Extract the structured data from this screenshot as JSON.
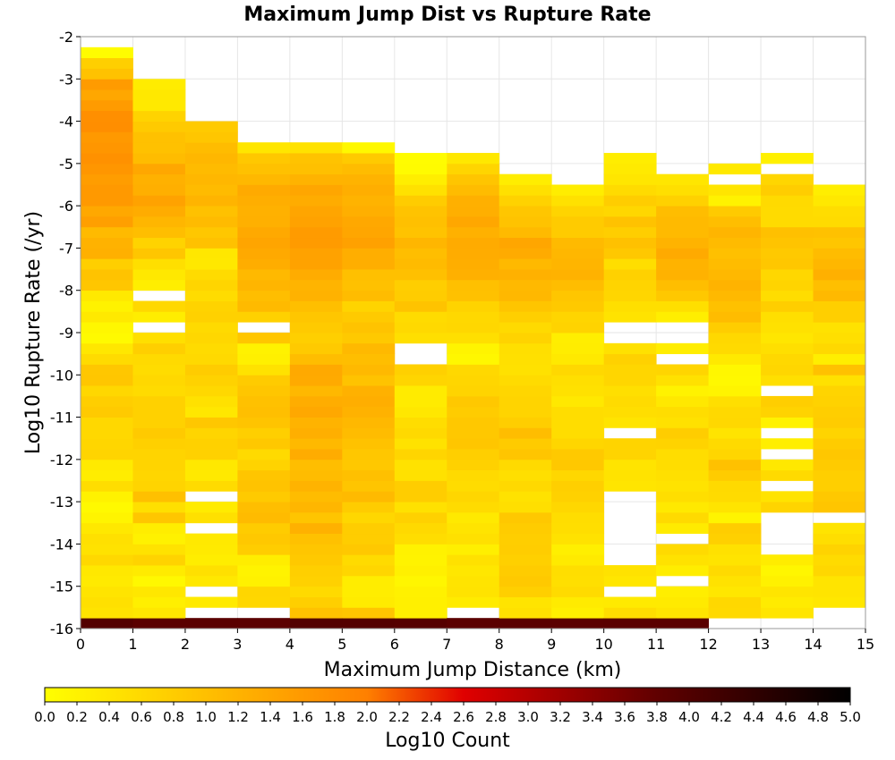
{
  "chart_data": {
    "type": "heatmap",
    "title": "Maximum Jump Dist vs Rupture Rate",
    "xlabel": "Maximum Jump Distance (km)",
    "ylabel": "Log10 Rupture Rate (/yr)",
    "colorbar_label": "Log10 Count",
    "xlim": [
      0,
      15
    ],
    "ylim": [
      -16,
      -2
    ],
    "x_ticks": [
      0,
      1,
      2,
      3,
      4,
      5,
      6,
      7,
      8,
      9,
      10,
      11,
      12,
      13,
      14,
      15
    ],
    "y_ticks": [
      -2,
      -3,
      -4,
      -5,
      -6,
      -7,
      -8,
      -9,
      -10,
      -11,
      -12,
      -13,
      -14,
      -15,
      -16
    ],
    "colorbar_ticks": [
      "0.0",
      "0.2",
      "0.4",
      "0.6",
      "0.8",
      "1.0",
      "1.2",
      "1.4",
      "1.6",
      "1.8",
      "2.0",
      "2.2",
      "2.4",
      "2.6",
      "2.8",
      "3.0",
      "3.2",
      "3.4",
      "3.6",
      "3.8",
      "4.0",
      "4.2",
      "4.4",
      "4.6",
      "4.8",
      "5.0"
    ],
    "color_range": [
      0,
      5
    ],
    "colors": {
      "low": "#ffff00",
      "mid": "#ff8000",
      "high_mid": "#e00000",
      "dark": "#600000",
      "max": "#000000"
    },
    "bin_size": {
      "x": 1,
      "y": 0.25
    },
    "bins": [
      {
        "x": 0,
        "y_range": [
          -16,
          -2.75
        ],
        "values": [
          3.96,
          0.44,
          0.49,
          0.42,
          0.33,
          0.36,
          0.61,
          0.45,
          0.49,
          0.36,
          0.17,
          0.1,
          0.2,
          0.53,
          0.29,
          0.33,
          0.68,
          0.64,
          0.61,
          0.61,
          0.83,
          0.77,
          0.63,
          0.89,
          0.88,
          0.56,
          0.38,
          0.08,
          0.12,
          0.34,
          0.21,
          0.34,
          0.89,
          0.95,
          0.76,
          1.25,
          1.21,
          1.09,
          1.51,
          1.37,
          1.61,
          1.61,
          1.55,
          1.66,
          1.73,
          1.66,
          1.61,
          1.78,
          1.77,
          1.57,
          1.39,
          1.58,
          0.96,
          0.75,
          0.05
        ]
      },
      {
        "x": 1,
        "y_range": [
          -16,
          -3.5
        ],
        "values": [
          3.87,
          0.38,
          0.25,
          0.38,
          0.11,
          0.32,
          0.69,
          0.45,
          0.22,
          0.28,
          0.89,
          0.51,
          0.99,
          0.68,
          0.64,
          0.67,
          0.67,
          0.74,
          0.84,
          0.73,
          0.72,
          0.73,
          0.56,
          0.61,
          0.55,
          0.58,
          0.75,
          0.51,
          null,
          0.28,
          0.62,
          null,
          0.26,
          0.37,
          0.51,
          0.89,
          0.69,
          1.03,
          1.15,
          1.3,
          1.47,
          1.26,
          1.23,
          1.38,
          1.06,
          0.98,
          0.97,
          0.84,
          0.7,
          0.34,
          0.36,
          0.3
        ]
      },
      {
        "x": 2,
        "y_range": [
          -16,
          -4.25
        ],
        "values": [
          3.87,
          null,
          0.33,
          null,
          0.37,
          0.49,
          0.29,
          0.33,
          0.35,
          null,
          0.49,
          0.31,
          null,
          0.56,
          0.35,
          0.37,
          0.73,
          0.72,
          0.66,
          0.88,
          0.38,
          0.47,
          0.62,
          0.71,
          0.81,
          0.6,
          0.57,
          0.63,
          0.59,
          0.73,
          0.7,
          0.55,
          0.66,
          0.57,
          0.36,
          0.38,
          0.97,
          0.88,
          1.07,
          0.98,
          1.18,
          1.07,
          1.14,
          1.07,
          1.13,
          1.06,
          0.89,
          0.84
        ]
      },
      {
        "x": 3,
        "y_range": [
          -16,
          -3.75
        ],
        "values": [
          3.86,
          null,
          0.63,
          0.65,
          0.22,
          0.19,
          0.29,
          0.78,
          0.86,
          0.8,
          1.07,
          1.03,
          0.84,
          0.95,
          0.91,
          0.7,
          0.58,
          0.87,
          0.76,
          0.93,
          1.01,
          0.97,
          0.89,
          0.82,
          0.45,
          0.24,
          0.2,
          0.9,
          null,
          0.73,
          1.09,
          1.03,
          1.17,
          1.11,
          1.29,
          1.36,
          1.41,
          1.35,
          1.24,
          1.23,
          1.28,
          1.34,
          1.12,
          0.98,
          0.86,
          0.4
        ]
      },
      {
        "x": 4,
        "y_range": [
          -16,
          -3.75
        ],
        "values": [
          3.96,
          0.96,
          0.76,
          0.58,
          0.72,
          0.75,
          0.85,
          0.89,
          0.97,
          1.23,
          0.91,
          1.15,
          1.05,
          1.19,
          1.05,
          1.02,
          1.31,
          1.11,
          1.26,
          1.2,
          1.37,
          1.29,
          1.12,
          1.34,
          1.36,
          1.04,
          0.83,
          0.76,
          0.83,
          0.89,
          1.01,
          1.21,
          1.18,
          1.31,
          1.47,
          1.46,
          1.58,
          1.58,
          1.46,
          1.41,
          1.31,
          1.4,
          1.2,
          0.99,
          0.94,
          0.45
        ]
      },
      {
        "x": 5,
        "y_range": [
          -16,
          -3.75
        ],
        "values": [
          3.95,
          0.91,
          0.31,
          0.29,
          0.28,
          0.64,
          0.56,
          0.86,
          0.78,
          0.79,
          0.63,
          0.81,
          1.09,
          0.91,
          0.99,
          0.87,
          0.88,
          0.96,
          1.05,
          1.12,
          1.21,
          1.28,
          1.23,
          0.94,
          1.11,
          1.03,
          1.1,
          0.85,
          0.94,
          0.84,
          0.67,
          1.06,
          0.97,
          1.0,
          1.28,
          1.27,
          1.48,
          1.4,
          1.37,
          1.26,
          1.19,
          1.28,
          1.2,
          1.06,
          0.83,
          0.11
        ]
      },
      {
        "x": 6,
        "y_range": [
          -16,
          -3.5
        ],
        "values": [
          3.93,
          0.24,
          0.24,
          0.22,
          0.14,
          0.24,
          0.19,
          0.2,
          0.54,
          0.6,
          0.73,
          0.48,
          0.79,
          0.78,
          0.48,
          0.45,
          0.66,
          0.45,
          0.6,
          0.53,
          0.38,
          0.32,
          0.32,
          0.66,
          0.74,
          null,
          null,
          0.51,
          0.6,
          0.56,
          0.95,
          0.8,
          0.77,
          1.0,
          1.07,
          1.02,
          1.15,
          0.94,
          0.99,
          0.94,
          0.8,
          0.48,
          0.26,
          0.07,
          0.05
        ]
      },
      {
        "x": 7,
        "y_range": [
          -16,
          -3.75
        ],
        "values": [
          3.86,
          null,
          0.32,
          0.44,
          0.43,
          0.38,
          0.47,
          0.25,
          0.49,
          0.43,
          0.34,
          0.57,
          0.65,
          0.55,
          0.58,
          0.72,
          0.76,
          0.89,
          0.87,
          0.86,
          0.81,
          0.86,
          0.68,
          0.64,
          0.61,
          0.12,
          0.18,
          0.51,
          0.63,
          0.61,
          0.7,
          0.97,
          1.0,
          1.25,
          1.27,
          1.31,
          1.32,
          1.23,
          1.39,
          1.26,
          1.24,
          1.05,
          0.92,
          0.66,
          0.36
        ]
      },
      {
        "x": 8,
        "y_range": [
          -16,
          -4.0
        ],
        "values": [
          3.88,
          0.48,
          0.43,
          0.76,
          0.85,
          0.81,
          0.74,
          0.79,
          0.77,
          0.81,
          0.86,
          0.5,
          0.45,
          0.6,
          0.5,
          0.58,
          0.92,
          0.82,
          1.04,
          0.77,
          0.67,
          0.67,
          0.64,
          0.56,
          0.48,
          0.49,
          0.51,
          0.69,
          0.58,
          0.75,
          0.91,
          1.12,
          1.11,
          1.23,
          1.1,
          1.33,
          1.4,
          1.08,
          0.95,
          0.9,
          0.71,
          0.49,
          0.29
        ]
      },
      {
        "x": 9,
        "y_range": [
          -16,
          -4.0
        ],
        "values": [
          3.86,
          0.25,
          0.32,
          0.57,
          0.51,
          0.52,
          0.33,
          0.25,
          0.46,
          0.52,
          0.54,
          0.63,
          0.72,
          0.75,
          0.63,
          0.86,
          0.85,
          0.65,
          0.54,
          0.53,
          0.53,
          0.37,
          0.48,
          0.51,
          0.61,
          0.34,
          0.29,
          0.26,
          0.69,
          0.66,
          0.85,
          0.89,
          1.04,
          1.21,
          1.17,
          1.13,
          1.08,
          0.82,
          0.82,
          0.68,
          0.48,
          0.28
        ]
      },
      {
        "x": 10,
        "y_range": [
          -16,
          -3.75
        ],
        "values": [
          3.87,
          0.53,
          0.33,
          null,
          0.4,
          0.46,
          null,
          null,
          null,
          null,
          null,
          null,
          null,
          0.41,
          0.44,
          0.42,
          0.68,
          0.68,
          null,
          0.43,
          0.52,
          0.56,
          0.5,
          0.64,
          0.64,
          0.73,
          0.48,
          null,
          null,
          0.44,
          0.51,
          0.64,
          0.67,
          0.72,
          0.52,
          0.87,
          0.98,
          0.77,
          0.96,
          0.63,
          0.78,
          0.56,
          0.4,
          0.33,
          0.28
        ]
      },
      {
        "x": 11,
        "y_range": [
          -16,
          -4.0
        ],
        "values": [
          3.88,
          0.41,
          0.33,
          0.27,
          null,
          0.29,
          0.46,
          0.58,
          null,
          0.31,
          0.58,
          0.35,
          0.52,
          0.44,
          0.49,
          0.54,
          0.53,
          0.69,
          0.79,
          0.48,
          0.54,
          0.37,
          0.2,
          0.48,
          0.66,
          null,
          0.28,
          null,
          null,
          0.27,
          0.51,
          0.87,
          1.03,
          1.21,
          1.19,
          1.34,
          1.19,
          1.08,
          1.09,
          1.04,
          0.72,
          0.51,
          0.4
        ]
      },
      {
        "x": 12,
        "y_range": [
          -16,
          -3.5
        ],
        "values": [
          null,
          0.6,
          0.62,
          0.38,
          0.46,
          0.58,
          0.42,
          0.48,
          0.74,
          0.78,
          0.18,
          0.43,
          0.57,
          0.58,
          0.8,
          0.98,
          0.64,
          0.59,
          0.42,
          0.61,
          0.6,
          0.5,
          0.17,
          0.11,
          0.12,
          0.34,
          0.58,
          0.61,
          0.78,
          1.05,
          0.98,
          1.11,
          1.19,
          1.12,
          1.05,
          0.99,
          1.07,
          1.17,
          1.02,
          0.84,
          0.2,
          0.41,
          null,
          0.35
        ]
      },
      {
        "x": 13,
        "y_range": [
          -16,
          -3.75
        ],
        "values": [
          null,
          0.41,
          0.31,
          0.41,
          0.22,
          0.14,
          0.3,
          null,
          null,
          null,
          null,
          0.68,
          0.44,
          null,
          0.58,
          0.36,
          null,
          0.27,
          null,
          0.21,
          0.69,
          0.77,
          null,
          0.5,
          0.65,
          0.61,
          0.5,
          0.39,
          0.48,
          0.5,
          0.77,
          0.53,
          0.68,
          0.63,
          0.88,
          0.85,
          0.93,
          0.99,
          0.57,
          0.57,
          0.58,
          0.78,
          0.64,
          null,
          0.23
        ]
      },
      {
        "x": 14,
        "y_range": [
          -16,
          -4.5
        ],
        "values": [
          null,
          null,
          0.38,
          0.42,
          0.42,
          0.63,
          0.57,
          0.69,
          0.52,
          0.42,
          null,
          0.92,
          0.86,
          0.75,
          0.75,
          0.82,
          0.88,
          0.8,
          0.68,
          0.8,
          0.77,
          0.71,
          0.67,
          0.48,
          0.97,
          0.26,
          0.61,
          0.51,
          0.46,
          0.75,
          0.76,
          1.11,
          1.01,
          1.25,
          1.13,
          1.06,
          0.89,
          0.98,
          0.56,
          0.53,
          0.36,
          0.27
        ]
      }
    ]
  }
}
